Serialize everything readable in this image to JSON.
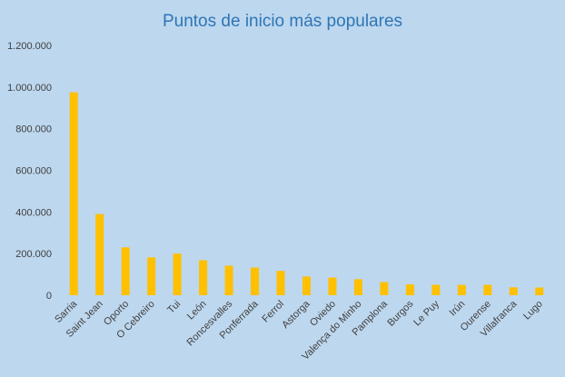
{
  "chart_data": {
    "type": "bar",
    "title": "Puntos de inicio más populares",
    "xlabel": "",
    "ylabel": "",
    "ylim": [
      0,
      1200000
    ],
    "yticks": [
      0,
      200000,
      400000,
      600000,
      800000,
      1000000,
      1200000
    ],
    "ytick_labels": [
      "0",
      "200.000",
      "400.000",
      "600.000",
      "800.000",
      "1.000.000",
      "1.200.000"
    ],
    "grid": false,
    "legend": "none",
    "bar_color": "#ffc000",
    "background_color": "#bdd7ee",
    "categories": [
      "Sarria",
      "Saint Jean",
      "Oporto",
      "O Cebreiro",
      "Tui",
      "León",
      "Roncesvalles",
      "Ponferrada",
      "Ferrol",
      "Astorga",
      "Oviedo",
      "Valença do Minho",
      "Pamplona",
      "Burgos",
      "Le Puy",
      "Irún",
      "Ourense",
      "Villafranca",
      "Lugo"
    ],
    "values": [
      975000,
      390000,
      230000,
      182000,
      200000,
      168000,
      142000,
      133000,
      117000,
      90000,
      85000,
      77000,
      63000,
      52000,
      50000,
      50000,
      50000,
      38000,
      37000
    ]
  }
}
